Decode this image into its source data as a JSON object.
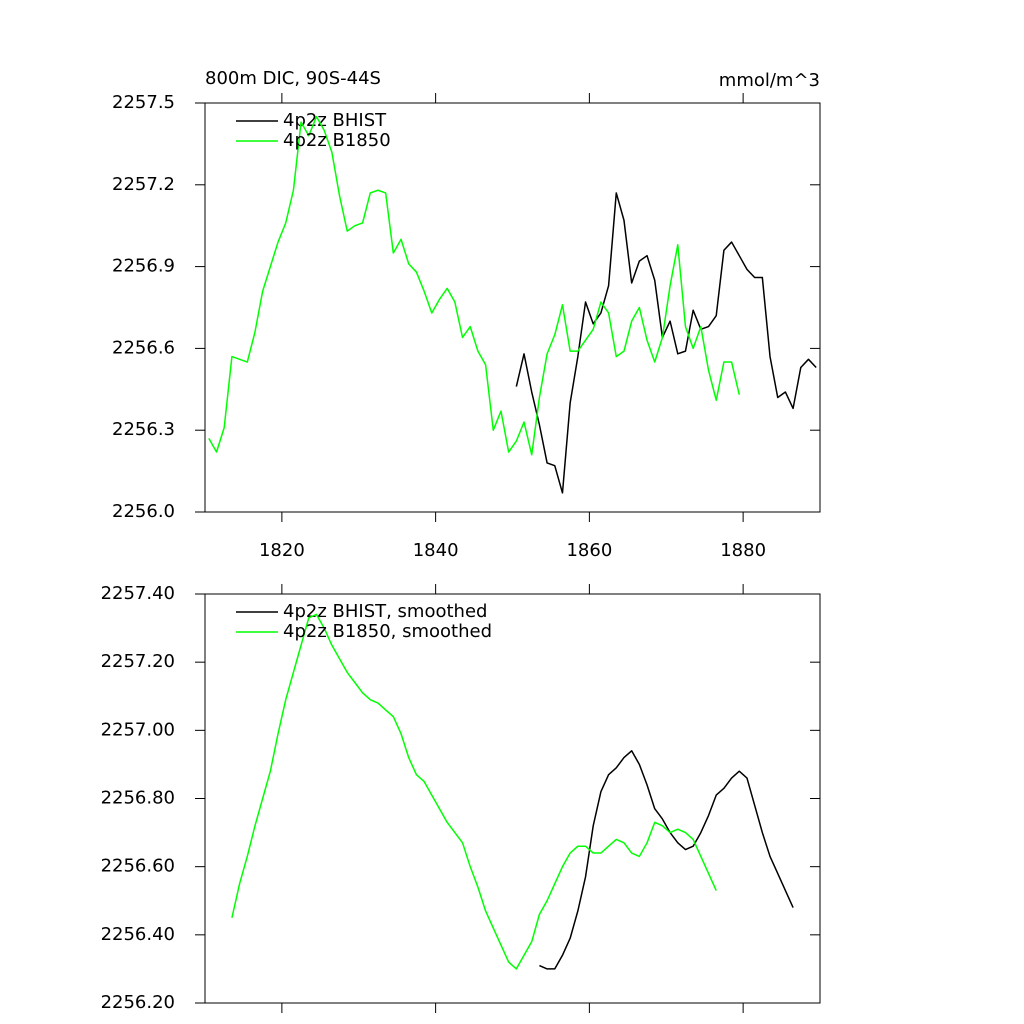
{
  "chart_data": [
    {
      "type": "line",
      "title": "800m DIC, 90S-44S",
      "units_label": "mmol/m^3",
      "xlim": [
        1810,
        1890
      ],
      "xticks": [
        1820,
        1840,
        1860,
        1880
      ],
      "ylim": [
        2256.0,
        2257.5
      ],
      "yticks": [
        {
          "value": 2256.0,
          "label": "2256.0"
        },
        2256.3,
        2256.6,
        2256.9,
        2257.2,
        2257.5
      ],
      "series": [
        {
          "name": "4p2z BHIST",
          "color": "#000000",
          "x": [
            1850.5,
            1851.5,
            1852.5,
            1853.5,
            1854.5,
            1855.5,
            1856.5,
            1857.5,
            1858.5,
            1859.5,
            1860.5,
            1861.5,
            1862.5,
            1863.5,
            1864.5,
            1865.5,
            1866.5,
            1867.5,
            1868.5,
            1869.5,
            1870.5,
            1871.5,
            1872.5,
            1873.5,
            1874.5,
            1875.5,
            1876.5,
            1877.5,
            1878.5,
            1879.5,
            1880.5,
            1881.5,
            1882.5,
            1883.5,
            1884.5,
            1885.5,
            1886.5,
            1887.5,
            1888.5,
            1889.5
          ],
          "values": [
            2256.46,
            2256.58,
            2256.44,
            2256.32,
            2256.18,
            2256.17,
            2256.07,
            2256.4,
            2256.57,
            2256.77,
            2256.69,
            2256.73,
            2256.83,
            2257.17,
            2257.07,
            2256.84,
            2256.92,
            2256.94,
            2256.85,
            2256.64,
            2256.7,
            2256.58,
            2256.59,
            2256.74,
            2256.67,
            2256.68,
            2256.72,
            2256.96,
            2256.99,
            2256.94,
            2256.89,
            2256.86,
            2256.86,
            2256.57,
            2256.42,
            2256.44,
            2256.38,
            2256.53,
            2256.56,
            2256.53
          ]
        },
        {
          "name": "4p2z B1850",
          "color": "#00ff00",
          "x": [
            1810.5,
            1811.5,
            1812.5,
            1813.5,
            1814.5,
            1815.5,
            1816.5,
            1817.5,
            1818.5,
            1819.5,
            1820.5,
            1821.5,
            1822.5,
            1823.5,
            1824.5,
            1825.5,
            1826.5,
            1827.5,
            1828.5,
            1829.5,
            1830.5,
            1831.5,
            1832.5,
            1833.5,
            1834.5,
            1835.5,
            1836.5,
            1837.5,
            1838.5,
            1839.5,
            1840.5,
            1841.5,
            1842.5,
            1843.5,
            1844.5,
            1845.5,
            1846.5,
            1847.5,
            1848.5,
            1849.5,
            1850.5,
            1851.5,
            1852.5,
            1853.5,
            1854.5,
            1855.5,
            1856.5,
            1857.5,
            1858.5,
            1859.5,
            1860.5,
            1861.5,
            1862.5,
            1863.5,
            1864.5,
            1865.5,
            1866.5,
            1867.5,
            1868.5,
            1869.5,
            1870.5,
            1871.5,
            1872.5,
            1873.5,
            1874.5,
            1875.5,
            1876.5,
            1877.5,
            1878.5,
            1879.5
          ],
          "values": [
            2256.27,
            2256.22,
            2256.31,
            2256.57,
            2256.56,
            2256.55,
            2256.66,
            2256.81,
            2256.9,
            2256.99,
            2257.06,
            2257.18,
            2257.43,
            2257.38,
            2257.45,
            2257.4,
            2257.32,
            2257.16,
            2257.03,
            2257.05,
            2257.06,
            2257.17,
            2257.18,
            2257.17,
            2256.95,
            2257.0,
            2256.91,
            2256.88,
            2256.81,
            2256.73,
            2256.78,
            2256.82,
            2256.77,
            2256.64,
            2256.68,
            2256.59,
            2256.54,
            2256.3,
            2256.37,
            2256.22,
            2256.26,
            2256.33,
            2256.21,
            2256.42,
            2256.58,
            2256.65,
            2256.76,
            2256.59,
            2256.59,
            2256.63,
            2256.67,
            2256.77,
            2256.73,
            2256.57,
            2256.59,
            2256.7,
            2256.75,
            2256.63,
            2256.55,
            2256.64,
            2256.83,
            2256.98,
            2256.68,
            2256.6,
            2256.68,
            2256.52,
            2256.41,
            2256.55,
            2256.55,
            2256.43
          ]
        }
      ]
    },
    {
      "type": "line",
      "xlim": [
        1810,
        1890
      ],
      "xticks": [
        1820,
        1840,
        1860,
        1880
      ],
      "xtick_labels": false,
      "ylim": [
        2256.2,
        2257.4
      ],
      "yticks": [
        {
          "value": 2256.2,
          "label": "2256.20"
        },
        {
          "value": 2256.4,
          "label": "2256.40"
        },
        {
          "value": 2256.6,
          "label": "2256.60"
        },
        {
          "value": 2256.8,
          "label": "2256.80"
        },
        {
          "value": 2257.0,
          "label": "2257.00"
        },
        {
          "value": 2257.2,
          "label": "2257.20"
        },
        {
          "value": 2257.4,
          "label": "2257.40"
        }
      ],
      "series": [
        {
          "name": "4p2z BHIST, smoothed",
          "color": "#000000",
          "x": [
            1853.5,
            1854.5,
            1855.5,
            1856.5,
            1857.5,
            1858.5,
            1859.5,
            1860.5,
            1861.5,
            1862.5,
            1863.5,
            1864.5,
            1865.5,
            1866.5,
            1867.5,
            1868.5,
            1869.5,
            1870.5,
            1871.5,
            1872.5,
            1873.5,
            1874.5,
            1875.5,
            1876.5,
            1877.5,
            1878.5,
            1879.5,
            1880.5,
            1881.5,
            1882.5,
            1883.5,
            1884.5,
            1885.5,
            1886.5
          ],
          "values": [
            2256.31,
            2256.3,
            2256.3,
            2256.34,
            2256.39,
            2256.47,
            2256.57,
            2256.72,
            2256.82,
            2256.87,
            2256.89,
            2256.92,
            2256.94,
            2256.9,
            2256.84,
            2256.77,
            2256.74,
            2256.7,
            2256.67,
            2256.65,
            2256.66,
            2256.7,
            2256.75,
            2256.81,
            2256.83,
            2256.86,
            2256.88,
            2256.86,
            2256.78,
            2256.7,
            2256.63,
            2256.58,
            2256.53,
            2256.48
          ]
        },
        {
          "name": "4p2z B1850, smoothed",
          "color": "#00ff00",
          "x": [
            1813.5,
            1814.5,
            1815.5,
            1816.5,
            1817.5,
            1818.5,
            1819.5,
            1820.5,
            1821.5,
            1822.5,
            1823.5,
            1824.5,
            1825.5,
            1826.5,
            1827.5,
            1828.5,
            1829.5,
            1830.5,
            1831.5,
            1832.5,
            1833.5,
            1834.5,
            1835.5,
            1836.5,
            1837.5,
            1838.5,
            1839.5,
            1840.5,
            1841.5,
            1842.5,
            1843.5,
            1844.5,
            1845.5,
            1846.5,
            1847.5,
            1848.5,
            1849.5,
            1850.5,
            1851.5,
            1852.5,
            1853.5,
            1854.5,
            1855.5,
            1856.5,
            1857.5,
            1858.5,
            1859.5,
            1860.5,
            1861.5,
            1862.5,
            1863.5,
            1864.5,
            1865.5,
            1866.5,
            1867.5,
            1868.5,
            1869.5,
            1870.5,
            1871.5,
            1872.5,
            1873.5,
            1874.5,
            1875.5,
            1876.5
          ],
          "values": [
            2256.45,
            2256.55,
            2256.63,
            2256.72,
            2256.8,
            2256.88,
            2256.99,
            2257.09,
            2257.17,
            2257.25,
            2257.33,
            2257.34,
            2257.3,
            2257.25,
            2257.21,
            2257.17,
            2257.14,
            2257.11,
            2257.09,
            2257.08,
            2257.06,
            2257.04,
            2256.99,
            2256.92,
            2256.87,
            2256.85,
            2256.81,
            2256.77,
            2256.73,
            2256.7,
            2256.67,
            2256.6,
            2256.54,
            2256.47,
            2256.42,
            2256.37,
            2256.32,
            2256.3,
            2256.34,
            2256.38,
            2256.46,
            2256.5,
            2256.55,
            2256.6,
            2256.64,
            2256.66,
            2256.66,
            2256.64,
            2256.64,
            2256.66,
            2256.68,
            2256.67,
            2256.64,
            2256.63,
            2256.67,
            2256.73,
            2256.72,
            2256.7,
            2256.71,
            2256.7,
            2256.68,
            2256.63,
            2256.58,
            2256.53
          ]
        }
      ]
    }
  ]
}
